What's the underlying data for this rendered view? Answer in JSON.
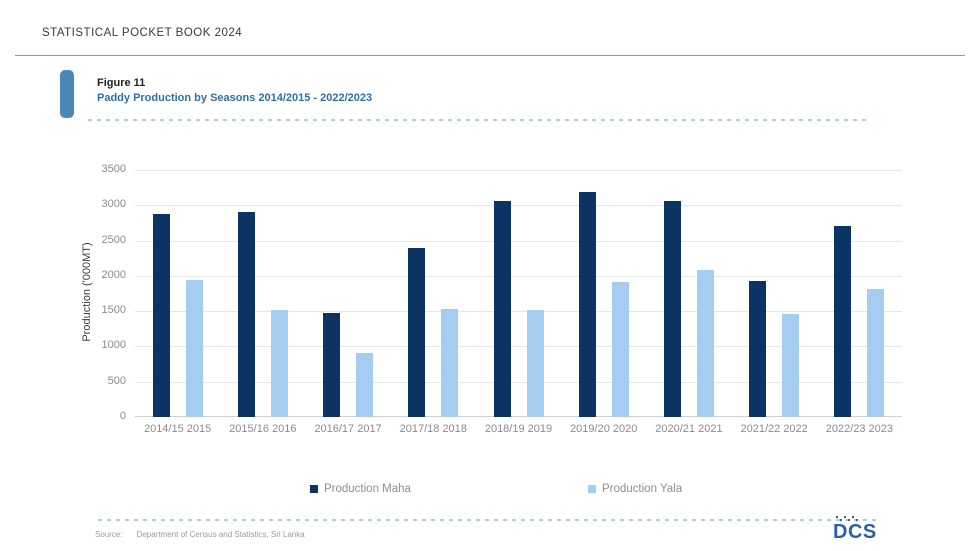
{
  "page": {
    "header_title": "STATISTICAL POCKET BOOK 2024",
    "figure_label": "Figure 11",
    "figure_title": "Paddy Production by Seasons 2014/2015 - 2022/2023",
    "source_label": "Source:",
    "source_text": "Department of Census and Statistics, Sri Lanka",
    "logo_text": "DCS"
  },
  "colors": {
    "maha_bar": "#0b3364",
    "yala_bar": "#a5cdf2",
    "figure_title_blue": "#2e6fad",
    "accent_tab_blue": "#4c87b8",
    "dashed_divider_teal": "#a9d6c9",
    "axis_text_gray": "#8b8b8b",
    "legend_text_gray": "#8f8f8f",
    "gridline_gray": "#e7e7e7",
    "logo_blue": "#2b5fa6"
  },
  "chart_data": {
    "type": "bar",
    "title": "Paddy Production by Seasons 2014/2015 - 2022/2023",
    "categories": [
      "2014/15 2015",
      "2015/16 2016",
      "2016/17 2017",
      "2017/18 2018",
      "2018/19 2019",
      "2019/20 2020",
      "2020/21 2021",
      "2021/22 2022",
      "2022/23 2023"
    ],
    "series": [
      {
        "name": "Production Maha",
        "color": "#0b3364",
        "values": [
          2880,
          2905,
          1470,
          2400,
          3065,
          3195,
          3060,
          1930,
          2700
        ]
      },
      {
        "name": "Production Yala",
        "color": "#a5cdf2",
        "values": [
          1940,
          1515,
          910,
          1525,
          1515,
          1920,
          2090,
          1460,
          1820
        ]
      }
    ],
    "xlabel": "",
    "ylabel": "Production ('000MT)",
    "ylim": [
      0,
      3500
    ],
    "ytick_step": 500,
    "yticks": [
      0,
      500,
      1000,
      1500,
      2000,
      2500,
      3000,
      3500
    ],
    "grid": "horizontal",
    "legend_position": "bottom"
  }
}
